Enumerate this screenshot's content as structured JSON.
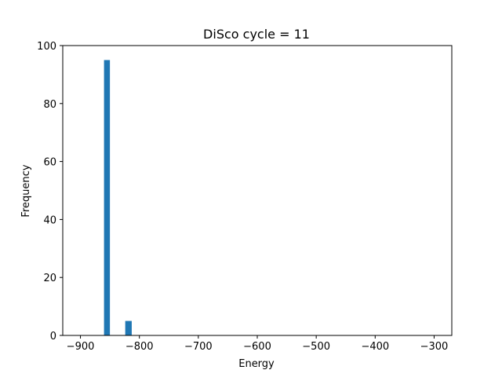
{
  "chart_data": {
    "type": "bar",
    "title": "DiSco cycle = 11",
    "xlabel": "Energy",
    "ylabel": "Frequency",
    "xlim": [
      -930,
      -270
    ],
    "ylim": [
      0,
      100
    ],
    "xticks": [
      -900,
      -800,
      -700,
      -600,
      -500,
      -400,
      -300
    ],
    "yticks": [
      0,
      20,
      40,
      60,
      80,
      100
    ],
    "bar_color": "#1f77b4",
    "bars": [
      {
        "x_start": -860,
        "x_end": -850,
        "value": 95
      },
      {
        "x_start": -824,
        "x_end": -813,
        "value": 5
      }
    ],
    "grid": false,
    "legend": "none"
  }
}
